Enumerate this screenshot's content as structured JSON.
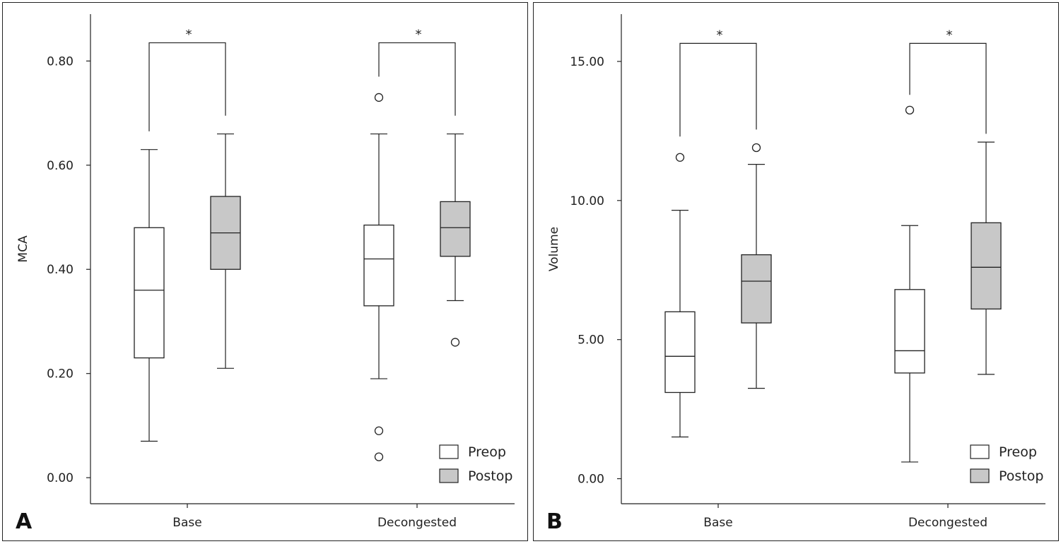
{
  "chart_data": [
    {
      "type": "box",
      "panel_label": "A",
      "ylabel": "MCA",
      "xlabel": "",
      "ylim": [
        -0.05,
        0.89
      ],
      "yticks": [
        0.0,
        0.2,
        0.4,
        0.6,
        0.8
      ],
      "ytick_labels": [
        "0.00",
        "0.20",
        "0.40",
        "0.60",
        "0.80"
      ],
      "categories": [
        "Base",
        "Decongested"
      ],
      "legend": {
        "position": "bottom-right",
        "entries": [
          {
            "name": "Preop",
            "color": "#ffffff"
          },
          {
            "name": "Postop",
            "color": "#c8c8c8"
          }
        ]
      },
      "series": [
        {
          "name": "Preop",
          "color": "#ffffff",
          "boxes": [
            {
              "min": 0.07,
              "q1": 0.23,
              "median": 0.36,
              "q3": 0.48,
              "max": 0.63,
              "outliers": []
            },
            {
              "min": 0.19,
              "q1": 0.33,
              "median": 0.42,
              "q3": 0.485,
              "max": 0.66,
              "outliers": [
                0.73,
                0.09,
                0.04
              ]
            }
          ]
        },
        {
          "name": "Postop",
          "color": "#c8c8c8",
          "boxes": [
            {
              "min": 0.21,
              "q1": 0.4,
              "median": 0.47,
              "q3": 0.54,
              "max": 0.66,
              "outliers": []
            },
            {
              "min": 0.34,
              "q1": 0.425,
              "median": 0.48,
              "q3": 0.53,
              "max": 0.66,
              "outliers": [
                0.26
              ]
            }
          ]
        }
      ],
      "significance": [
        {
          "category": "Base",
          "label": "*",
          "left": 0.665,
          "right": 0.695,
          "top": 0.835
        },
        {
          "category": "Decongested",
          "label": "*",
          "left": 0.77,
          "right": 0.695,
          "top": 0.835
        }
      ]
    },
    {
      "type": "box",
      "panel_label": "B",
      "ylabel": "Volume",
      "xlabel": "",
      "ylim": [
        -0.9,
        16.7
      ],
      "yticks": [
        0.0,
        5.0,
        10.0,
        15.0
      ],
      "ytick_labels": [
        "0.00",
        "5.00",
        "10.00",
        "15.00"
      ],
      "categories": [
        "Base",
        "Decongested"
      ],
      "legend": {
        "position": "bottom-right",
        "entries": [
          {
            "name": "Preop",
            "color": "#ffffff"
          },
          {
            "name": "Postop",
            "color": "#c8c8c8"
          }
        ]
      },
      "series": [
        {
          "name": "Preop",
          "color": "#ffffff",
          "boxes": [
            {
              "min": 1.5,
              "q1": 3.1,
              "median": 4.4,
              "q3": 6.0,
              "max": 9.65,
              "outliers": [
                11.55
              ]
            },
            {
              "min": 0.6,
              "q1": 3.8,
              "median": 4.6,
              "q3": 6.8,
              "max": 9.1,
              "outliers": [
                13.25
              ]
            }
          ]
        },
        {
          "name": "Postop",
          "color": "#c8c8c8",
          "boxes": [
            {
              "min": 3.25,
              "q1": 5.6,
              "median": 7.1,
              "q3": 8.05,
              "max": 11.3,
              "outliers": [
                11.9
              ]
            },
            {
              "min": 3.75,
              "q1": 6.1,
              "median": 7.6,
              "q3": 9.2,
              "max": 12.1,
              "outliers": []
            }
          ]
        }
      ],
      "significance": [
        {
          "category": "Base",
          "label": "*",
          "left": 12.3,
          "right": 12.55,
          "top": 15.65
        },
        {
          "category": "Decongested",
          "label": "*",
          "left": 13.8,
          "right": 12.4,
          "top": 15.65
        }
      ]
    }
  ]
}
